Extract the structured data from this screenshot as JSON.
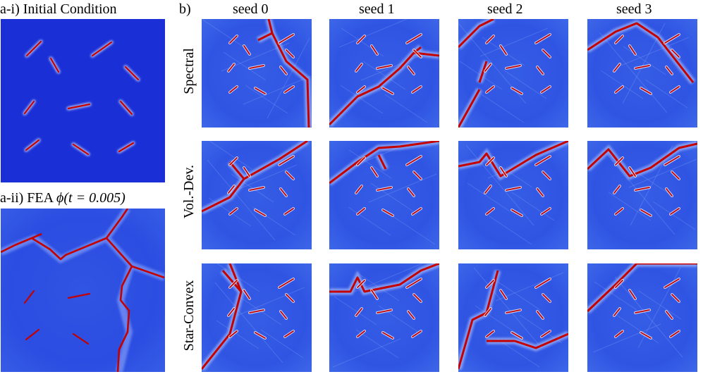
{
  "panel_a1_title": "a-i) Initial Condition",
  "panel_a2_title_prefix": "a-ii) FEA ",
  "panel_a2_title_math": "ϕ(t = 0.005)",
  "panel_b_label": "b)",
  "columns": [
    "seed 0",
    "seed 1",
    "seed 2",
    "seed 3"
  ],
  "rows": [
    "Spectral",
    "Vol.-Dev.",
    "Star-Convex"
  ],
  "colors": {
    "background_field": "#1a2fd6",
    "field_light": "#3a64e8",
    "crack_red": "#c40000",
    "crack_halo": "#ffffff"
  }
}
